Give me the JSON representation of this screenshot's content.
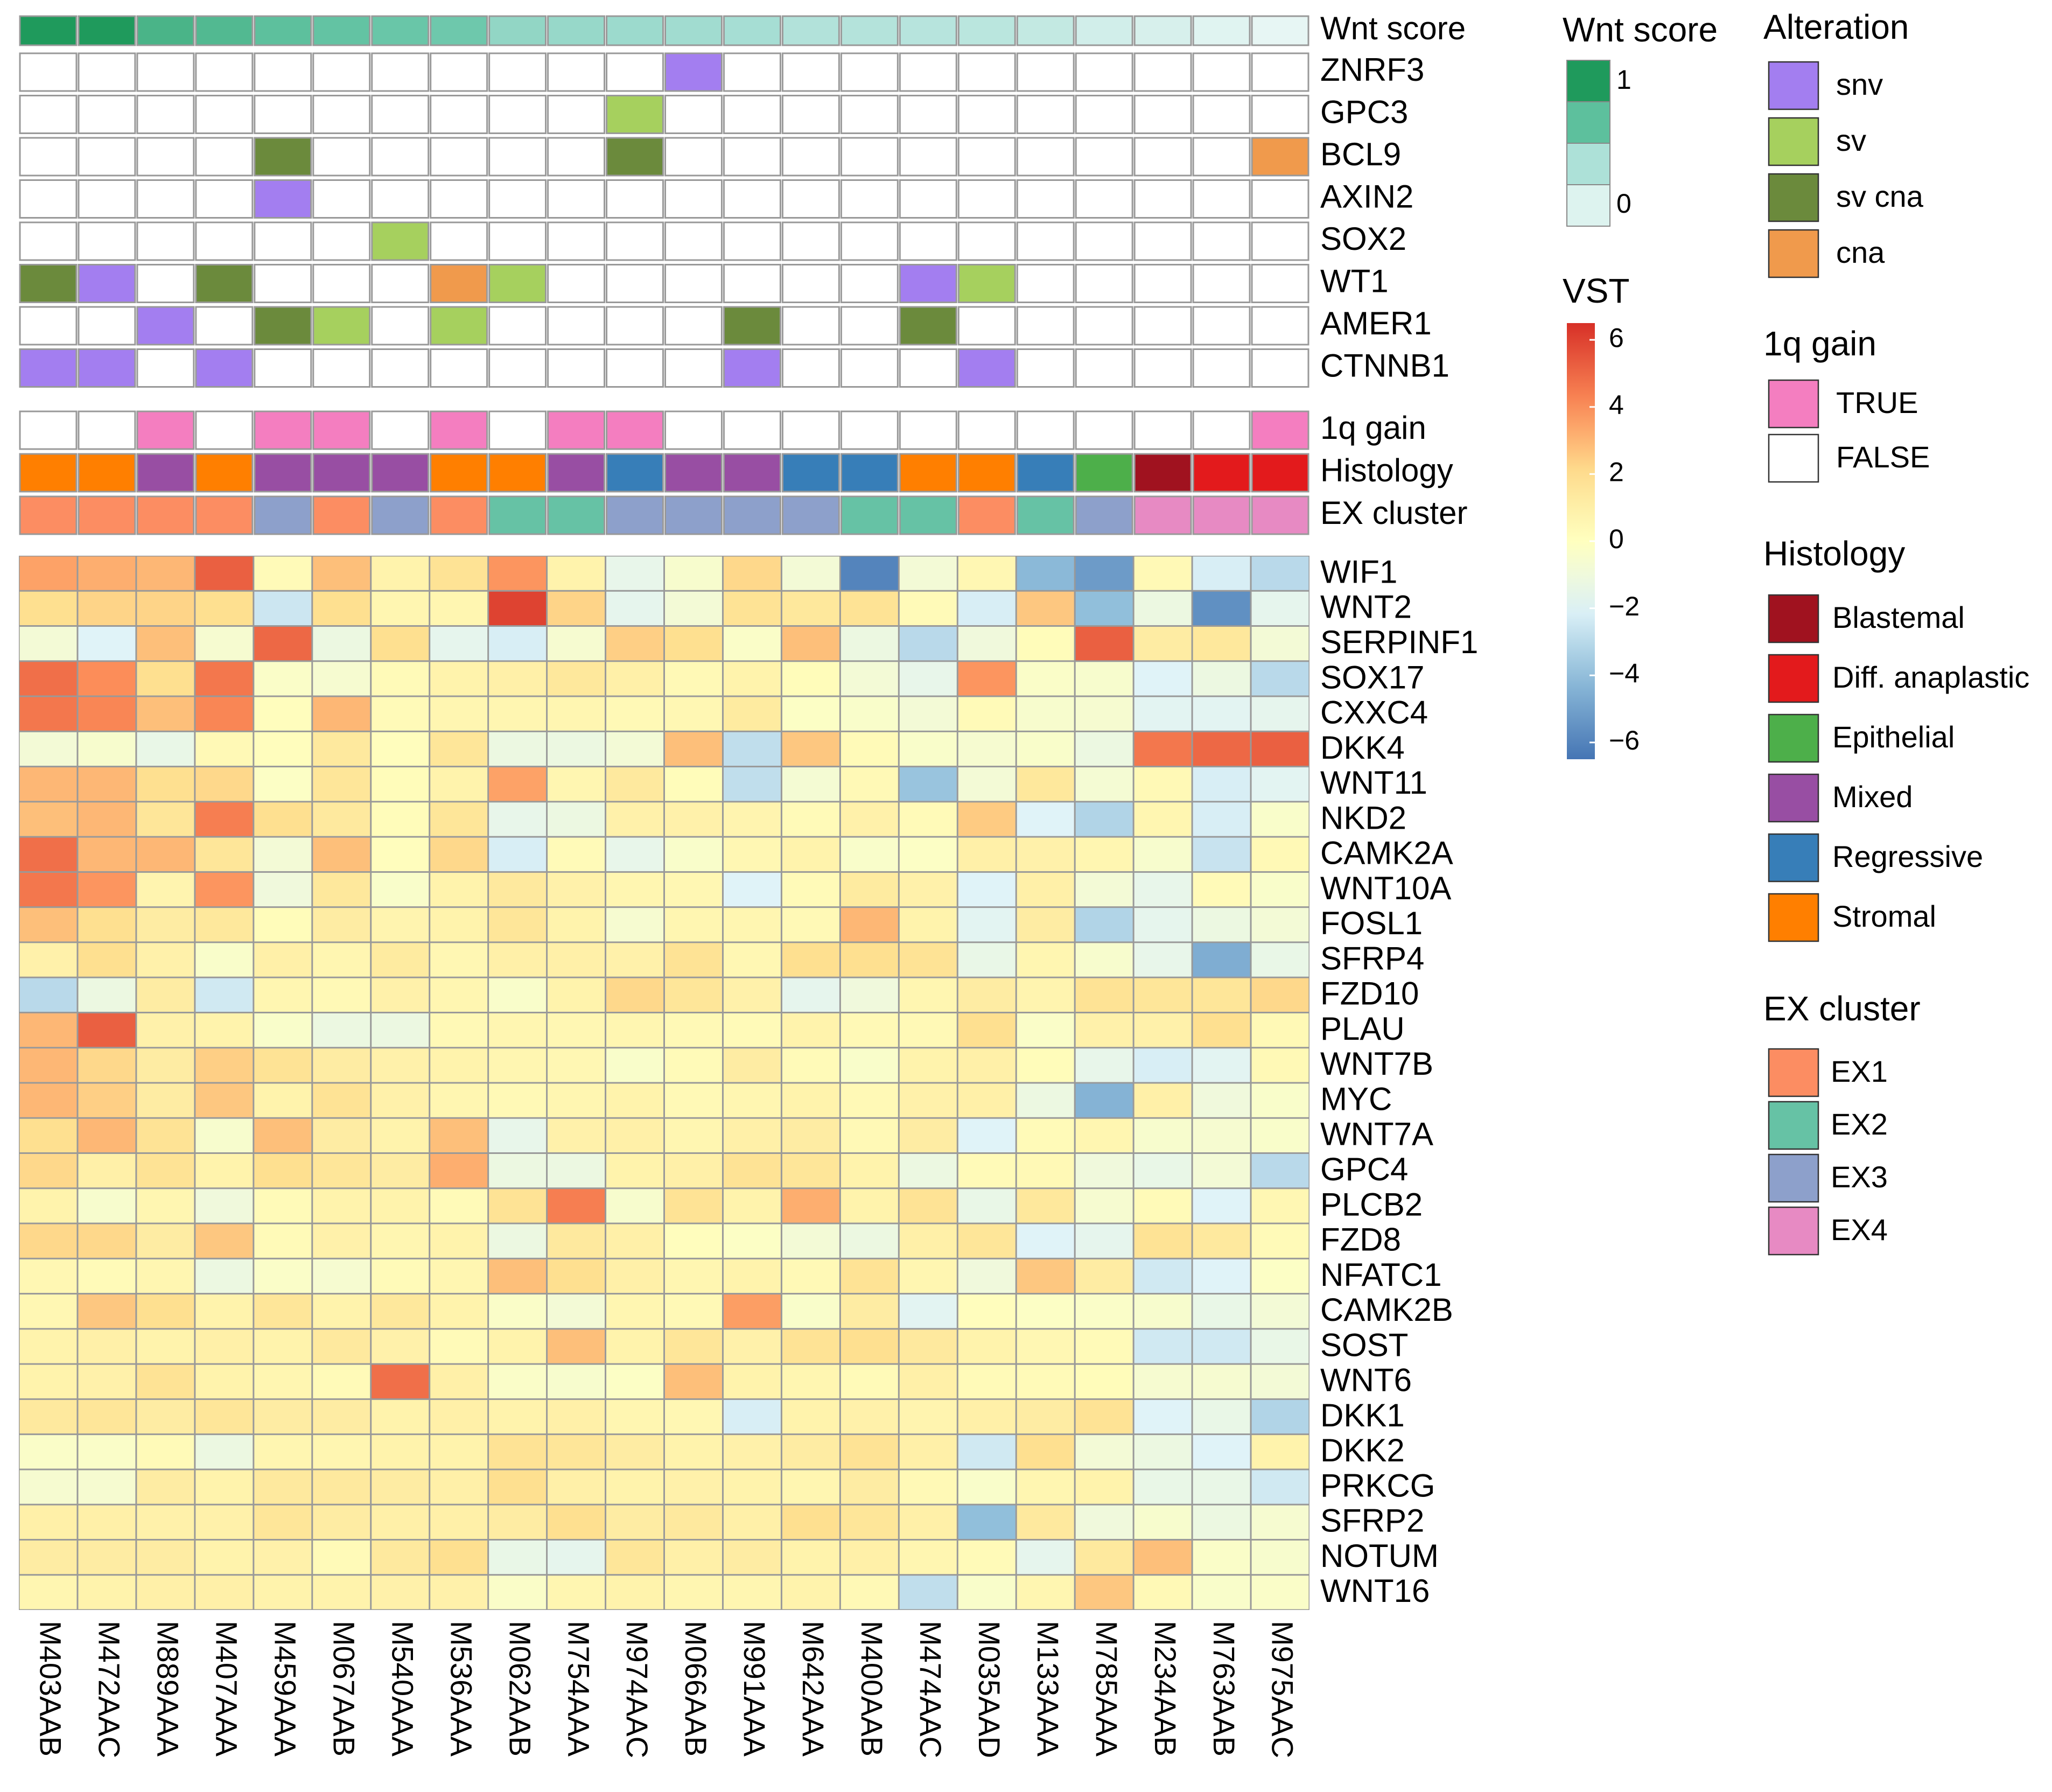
{
  "chart_data": {
    "type": "heatmap",
    "title": "",
    "samples": [
      "M403AAB",
      "M472AAC",
      "M889AAA",
      "M407AAA",
      "M459AAA",
      "M067AAB",
      "M540AAA",
      "M536AAA",
      "M062AAB",
      "M754AAA",
      "M974AAC",
      "M066AAB",
      "M991AAA",
      "M642AAA",
      "M400AAB",
      "M474AAC",
      "M035AAD",
      "M133AAA",
      "M785AAA",
      "M234AAB",
      "M763AAB",
      "M975AAC"
    ],
    "wnt_score": {
      "label": "Wnt score",
      "values": [
        1.0,
        1.0,
        0.85,
        0.82,
        0.78,
        0.76,
        0.74,
        0.72,
        0.58,
        0.56,
        0.54,
        0.52,
        0.5,
        0.42,
        0.4,
        0.38,
        0.36,
        0.3,
        0.2,
        0.16,
        0.1,
        0.05
      ]
    },
    "mutation_genes": [
      "ZNRF3",
      "GPC3",
      "BCL9",
      "AXIN2",
      "SOX2",
      "WT1",
      "AMER1",
      "CTNNB1"
    ],
    "mutations": [
      [
        "",
        "",
        "",
        "",
        "",
        "",
        "",
        "",
        "",
        "",
        "",
        "snv",
        "",
        "",
        "",
        "",
        "",
        "",
        "",
        "",
        "",
        ""
      ],
      [
        "",
        "",
        "",
        "",
        "",
        "",
        "",
        "",
        "",
        "",
        "sv",
        "",
        "",
        "",
        "",
        "",
        "",
        "",
        "",
        "",
        "",
        ""
      ],
      [
        "",
        "",
        "",
        "",
        "sv cna",
        "",
        "",
        "",
        "",
        "",
        "sv cna",
        "",
        "",
        "",
        "",
        "",
        "",
        "",
        "",
        "",
        "",
        "cna"
      ],
      [
        "",
        "",
        "",
        "",
        "snv",
        "",
        "",
        "",
        "",
        "",
        "",
        "",
        "",
        "",
        "",
        "",
        "",
        "",
        "",
        "",
        "",
        ""
      ],
      [
        "",
        "",
        "",
        "",
        "",
        "",
        "sv",
        "",
        "",
        "",
        "",
        "",
        "",
        "",
        "",
        "",
        "",
        "",
        "",
        "",
        "",
        ""
      ],
      [
        "sv cna",
        "snv",
        "",
        "sv cna",
        "",
        "",
        "",
        "cna",
        "sv",
        "",
        "",
        "",
        "",
        "",
        "",
        "snv",
        "sv",
        "",
        "",
        "",
        "",
        ""
      ],
      [
        "",
        "",
        "snv",
        "",
        "sv cna",
        "sv",
        "",
        "sv",
        "",
        "",
        "",
        "",
        "sv cna",
        "",
        "",
        "sv cna",
        "",
        "",
        "",
        "",
        "",
        ""
      ],
      [
        "snv",
        "snv",
        "",
        "snv",
        "",
        "",
        "",
        "",
        "",
        "",
        "",
        "",
        "snv",
        "",
        "",
        "",
        "snv",
        "",
        "",
        "",
        "",
        ""
      ]
    ],
    "gain_1q": {
      "label": "1q gain",
      "values": [
        false,
        false,
        true,
        false,
        true,
        true,
        false,
        true,
        false,
        true,
        true,
        false,
        false,
        false,
        false,
        false,
        false,
        false,
        false,
        false,
        false,
        true
      ]
    },
    "histology": {
      "label": "Histology",
      "values": [
        "Stromal",
        "Stromal",
        "Mixed",
        "Stromal",
        "Mixed",
        "Mixed",
        "Mixed",
        "Stromal",
        "Stromal",
        "Mixed",
        "Regressive",
        "Mixed",
        "Mixed",
        "Regressive",
        "Regressive",
        "Stromal",
        "Stromal",
        "Regressive",
        "Epithelial",
        "Blastemal",
        "Diff. anaplastic",
        "Diff. anaplastic"
      ]
    },
    "ex_cluster": {
      "label": "EX cluster",
      "values": [
        "EX1",
        "EX1",
        "EX1",
        "EX1",
        "EX3",
        "EX1",
        "EX3",
        "EX1",
        "EX2",
        "EX2",
        "EX3",
        "EX3",
        "EX3",
        "EX3",
        "EX2",
        "EX2",
        "EX1",
        "EX2",
        "EX3",
        "EX4",
        "EX4",
        "EX4"
      ]
    },
    "expression_genes": [
      "WIF1",
      "WNT2",
      "SERPINF1",
      "SOX17",
      "CXXC4",
      "DKK4",
      "WNT11",
      "NKD2",
      "CAMK2A",
      "WNT10A",
      "FOSL1",
      "SFRP4",
      "FZD10",
      "PLAU",
      "WNT7B",
      "MYC",
      "WNT7A",
      "GPC4",
      "PLCB2",
      "FZD8",
      "NFATC1",
      "CAMK2B",
      "SOST",
      "WNT6",
      "DKK1",
      "DKK2",
      "PRKCG",
      "SFRP2",
      "NOTUM",
      "WNT16"
    ],
    "expression": [
      [
        3.5,
        3.2,
        3.0,
        5.2,
        0.3,
        2.8,
        0.8,
        1.8,
        3.8,
        0.8,
        -1.5,
        -0.5,
        2.2,
        -0.8,
        -6.0,
        -0.8,
        0.5,
        -4.2,
        -5.2,
        0.4,
        -2.2,
        -3.0
      ],
      [
        2.0,
        2.3,
        2.3,
        2.0,
        -2.5,
        2.0,
        0.6,
        0.6,
        6.0,
        2.3,
        -1.6,
        -0.8,
        1.8,
        1.5,
        1.8,
        0.3,
        -2.2,
        2.6,
        -4.0,
        -1.2,
        -5.6,
        -1.6
      ],
      [
        -0.8,
        -2.0,
        2.8,
        -0.6,
        5.0,
        -1.2,
        2.0,
        -1.6,
        -2.2,
        -0.6,
        2.4,
        2.0,
        -0.3,
        2.8,
        -1.2,
        -3.0,
        -1.0,
        0.2,
        5.2,
        1.2,
        1.5,
        -0.8
      ],
      [
        4.8,
        4.0,
        2.0,
        4.6,
        -0.3,
        -0.6,
        0.3,
        0.8,
        1.0,
        1.5,
        1.0,
        0.4,
        0.8,
        0.2,
        -0.8,
        -1.5,
        3.8,
        -0.3,
        -0.5,
        -2.0,
        -1.2,
        -3.0
      ],
      [
        4.6,
        4.2,
        2.8,
        4.2,
        0.1,
        3.0,
        0.3,
        0.6,
        0.6,
        0.6,
        0.4,
        0.5,
        1.3,
        -0.2,
        -0.4,
        -0.8,
        0.3,
        -0.5,
        -0.6,
        -1.8,
        -1.8,
        -1.6
      ],
      [
        -0.8,
        -0.5,
        -1.4,
        0.4,
        0.1,
        1.4,
        0.1,
        1.6,
        -1.2,
        -1.2,
        -0.8,
        2.8,
        -2.8,
        2.6,
        0.3,
        -0.4,
        -0.6,
        -0.4,
        -1.2,
        4.6,
        5.0,
        5.2
      ],
      [
        3.0,
        3.0,
        2.0,
        2.2,
        -0.2,
        1.6,
        0.2,
        0.8,
        3.5,
        0.6,
        1.4,
        0.2,
        -2.8,
        -0.7,
        0.4,
        -3.8,
        -0.8,
        1.5,
        -0.7,
        0.4,
        -2.2,
        -1.8
      ],
      [
        2.8,
        3.0,
        1.6,
        4.4,
        2.0,
        1.4,
        0.2,
        1.6,
        -1.5,
        -1.2,
        0.9,
        0.9,
        0.7,
        0.3,
        0.9,
        0.3,
        2.5,
        -2.0,
        -3.2,
        0.6,
        -2.2,
        -0.4
      ],
      [
        4.8,
        3.0,
        3.0,
        1.6,
        -0.8,
        2.8,
        0.1,
        2.2,
        -2.2,
        0.3,
        -1.5,
        -0.4,
        0.5,
        0.8,
        -0.4,
        -0.2,
        1.0,
        0.9,
        0.6,
        -0.5,
        -2.6,
        0.4
      ],
      [
        4.6,
        3.8,
        0.7,
        3.8,
        -1.0,
        1.5,
        -0.4,
        0.8,
        1.4,
        0.9,
        0.6,
        0.5,
        -2.0,
        0.3,
        1.3,
        0.9,
        -2.0,
        1.0,
        -0.8,
        -1.5,
        0.3,
        -0.4
      ],
      [
        2.8,
        2.0,
        1.2,
        1.5,
        0.2,
        1.2,
        0.7,
        0.8,
        1.6,
        0.8,
        -0.6,
        0.6,
        0.6,
        0.4,
        3.0,
        0.8,
        -1.8,
        1.2,
        -3.2,
        -1.6,
        -1.2,
        -0.8
      ],
      [
        0.9,
        2.0,
        0.9,
        -0.4,
        1.0,
        0.6,
        1.3,
        0.5,
        1.0,
        1.0,
        0.9,
        1.8,
        0.5,
        2.0,
        2.0,
        1.8,
        -1.4,
        0.6,
        -0.5,
        -1.5,
        -4.6,
        -1.4
      ],
      [
        -3.0,
        -1.2,
        1.2,
        -2.4,
        0.6,
        0.4,
        0.9,
        0.6,
        -0.4,
        0.8,
        2.2,
        1.6,
        0.9,
        -1.6,
        -1.0,
        0.6,
        1.2,
        0.7,
        1.8,
        1.6,
        1.6,
        2.2
      ],
      [
        3.0,
        5.2,
        0.9,
        0.8,
        -0.4,
        -1.2,
        -1.2,
        0.4,
        0.6,
        0.5,
        0.6,
        0.4,
        0.3,
        0.8,
        0.4,
        0.4,
        2.0,
        -0.3,
        0.9,
        0.9,
        2.0,
        0.4
      ],
      [
        3.0,
        2.2,
        1.2,
        2.4,
        1.8,
        1.2,
        0.9,
        0.8,
        0.6,
        0.5,
        -0.4,
        0.3,
        1.2,
        0.3,
        -0.4,
        0.8,
        1.0,
        0.2,
        -1.5,
        -2.2,
        -1.8,
        0.4
      ],
      [
        3.0,
        2.4,
        1.2,
        2.6,
        0.8,
        1.8,
        0.9,
        0.6,
        0.4,
        0.6,
        0.8,
        0.4,
        0.6,
        0.8,
        0.4,
        0.9,
        1.0,
        -1.2,
        -4.4,
        1.0,
        -1.0,
        -0.4
      ],
      [
        2.0,
        3.0,
        1.8,
        -0.5,
        2.8,
        1.2,
        0.8,
        2.8,
        -1.5,
        0.9,
        1.0,
        0.6,
        1.0,
        1.2,
        0.4,
        1.2,
        -2.0,
        0.3,
        0.6,
        -0.5,
        -0.6,
        -0.4
      ],
      [
        2.2,
        1.0,
        1.8,
        0.8,
        2.0,
        1.6,
        1.2,
        3.2,
        -1.2,
        -1.2,
        0.8,
        1.0,
        1.8,
        1.6,
        0.8,
        -1.2,
        0.3,
        0.4,
        -1.0,
        -1.4,
        -0.8,
        -3.0
      ],
      [
        0.8,
        -0.5,
        0.6,
        -1.0,
        0.3,
        0.8,
        0.8,
        0.3,
        1.8,
        4.4,
        -0.5,
        1.8,
        0.8,
        3.2,
        0.8,
        1.8,
        -1.4,
        1.5,
        -0.6,
        0.3,
        -2.0,
        0.5
      ],
      [
        2.2,
        2.2,
        1.2,
        2.6,
        0.3,
        0.9,
        0.6,
        0.8,
        -1.2,
        1.4,
        1.0,
        0.1,
        -0.2,
        -0.8,
        -1.2,
        1.0,
        1.6,
        -2.0,
        -1.6,
        1.8,
        1.4,
        0.3
      ],
      [
        0.5,
        0.3,
        0.6,
        -1.2,
        -0.3,
        -0.6,
        0.3,
        0.6,
        2.8,
        2.0,
        1.0,
        0.6,
        0.8,
        0.4,
        1.8,
        0.6,
        -1.0,
        2.6,
        1.2,
        -2.4,
        -2.0,
        -0.2
      ],
      [
        0.5,
        2.6,
        2.0,
        0.8,
        1.6,
        0.8,
        1.5,
        0.8,
        -0.3,
        -0.8,
        0.6,
        0.4,
        3.6,
        -0.4,
        1.2,
        -1.8,
        0.1,
        -0.2,
        -0.3,
        -0.5,
        -1.4,
        -0.8
      ],
      [
        0.8,
        1.0,
        0.8,
        1.0,
        0.8,
        1.4,
        0.9,
        0.3,
        0.8,
        2.8,
        0.8,
        1.6,
        0.9,
        1.8,
        2.0,
        1.4,
        0.8,
        0.5,
        0.3,
        -2.4,
        -2.4,
        -1.4
      ],
      [
        0.8,
        0.9,
        1.8,
        0.8,
        0.6,
        0.3,
        4.8,
        1.0,
        -0.3,
        -0.5,
        -0.2,
        2.8,
        0.8,
        0.6,
        0.3,
        1.0,
        0.3,
        0.3,
        0.2,
        -0.6,
        -0.6,
        -0.8
      ],
      [
        1.4,
        1.6,
        1.2,
        1.6,
        1.2,
        1.2,
        0.8,
        1.0,
        0.8,
        1.0,
        0.6,
        0.5,
        -2.2,
        0.8,
        0.9,
        0.7,
        1.0,
        1.2,
        1.8,
        -2.0,
        -1.4,
        -3.2
      ],
      [
        -0.3,
        -0.3,
        0.3,
        -1.2,
        0.6,
        0.6,
        0.8,
        0.8,
        1.8,
        1.6,
        1.2,
        0.8,
        0.9,
        1.2,
        1.8,
        1.0,
        -2.4,
        2.0,
        -0.8,
        -1.2,
        -2.0,
        0.8
      ],
      [
        -0.6,
        -0.6,
        1.2,
        0.8,
        1.4,
        1.4,
        1.2,
        1.0,
        2.0,
        1.0,
        0.8,
        0.9,
        0.8,
        0.6,
        1.2,
        0.4,
        -0.4,
        0.6,
        0.8,
        -1.4,
        -1.4,
        -2.4
      ],
      [
        1.0,
        1.0,
        0.9,
        0.9,
        1.6,
        1.2,
        1.0,
        1.0,
        1.2,
        2.0,
        1.2,
        1.4,
        1.0,
        2.0,
        1.6,
        1.0,
        -4.0,
        1.4,
        -1.0,
        -0.5,
        -1.2,
        -0.6
      ],
      [
        1.2,
        1.2,
        1.2,
        0.8,
        0.9,
        0.3,
        1.4,
        2.0,
        -1.4,
        -1.6,
        1.6,
        1.0,
        1.2,
        0.8,
        1.0,
        0.6,
        0.3,
        -1.6,
        1.4,
        2.8,
        -0.3,
        -0.5
      ],
      [
        0.6,
        0.8,
        1.0,
        1.0,
        0.8,
        0.8,
        0.9,
        0.9,
        -0.3,
        0.6,
        0.8,
        0.6,
        0.6,
        0.8,
        0.4,
        -2.8,
        -0.4,
        0.6,
        2.6,
        0.4,
        -0.4,
        -0.3
      ]
    ],
    "vst_range": [
      -6.5,
      6.5
    ],
    "legends": {
      "wnt_score": {
        "title": "Wnt score",
        "ticks": [
          "1",
          "0"
        ]
      },
      "vst": {
        "title": "VST",
        "ticks": [
          "6",
          "4",
          "2",
          "0",
          "−2",
          "−4",
          "−6"
        ],
        "tick_values": [
          6,
          4,
          2,
          0,
          -2,
          -4,
          -6
        ]
      },
      "alteration": {
        "title": "Alteration",
        "items": [
          {
            "label": "snv",
            "color": "#A37EF0"
          },
          {
            "label": "sv",
            "color": "#A6D05E"
          },
          {
            "label": "sv cna",
            "color": "#6B8A3C"
          },
          {
            "label": "cna",
            "color": "#F09A4C"
          }
        ]
      },
      "gain_1q": {
        "title": "1q gain",
        "items": [
          {
            "label": "TRUE",
            "color": "#F47EC0"
          },
          {
            "label": "FALSE",
            "color": "#FFFFFF"
          }
        ]
      },
      "histology": {
        "title": "Histology",
        "items": [
          {
            "label": "Blastemal",
            "color": "#A0121F"
          },
          {
            "label": "Diff. anaplastic",
            "color": "#E31A1C"
          },
          {
            "label": "Epithelial",
            "color": "#4DAF4A"
          },
          {
            "label": "Mixed",
            "color": "#984EA3"
          },
          {
            "label": "Regressive",
            "color": "#377EB8"
          },
          {
            "label": "Stromal",
            "color": "#FF7F00"
          }
        ]
      },
      "ex_cluster": {
        "title": "EX cluster",
        "items": [
          {
            "label": "EX1",
            "color": "#FC8D62"
          },
          {
            "label": "EX2",
            "color": "#66C2A5"
          },
          {
            "label": "EX3",
            "color": "#8DA0CB"
          },
          {
            "label": "EX4",
            "color": "#E78AC3"
          }
        ]
      }
    },
    "colors": {
      "wnt_high": "#1F9A5C",
      "wnt_mid": "#66C5A6",
      "wnt_low": "#EEF9F8",
      "vst_low": "#4575B4",
      "vst_mid": "#FFFFBF",
      "vst_high": "#D73027",
      "cell_border": "#999999"
    }
  }
}
